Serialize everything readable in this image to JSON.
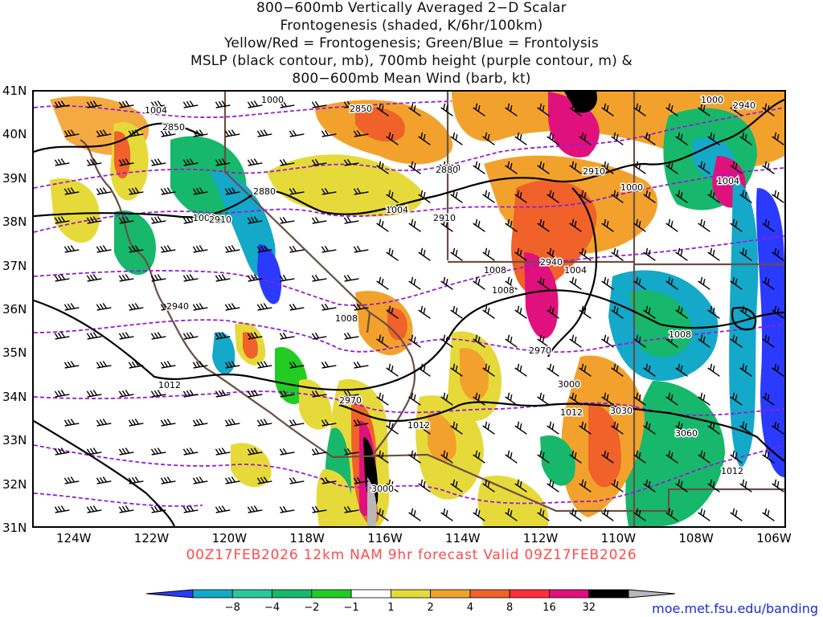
{
  "title": {
    "lines": [
      "800−600mb Vertically Averaged 2−D Scalar",
      "Frontogenesis (shaded, K/6hr/100km)",
      "Yellow/Red = Frontogenesis;  Green/Blue = Frontolysis",
      "MSLP (black contour, mb), 700mb height (purple contour, m) &",
      "800−600mb Mean Wind (barb, kt)"
    ]
  },
  "map": {
    "lat_labels": [
      "41N",
      "40N",
      "39N",
      "38N",
      "37N",
      "36N",
      "35N",
      "34N",
      "33N",
      "32N",
      "31N"
    ],
    "lon_labels": [
      "124W",
      "122W",
      "120W",
      "118W",
      "116W",
      "114W",
      "112W",
      "110W",
      "108W",
      "106W"
    ],
    "mslp_labels": [
      "1000",
      "1004",
      "1000",
      "1000",
      "1004",
      "1008",
      "1004",
      "1000",
      "1008",
      "1004",
      "1008",
      "1008",
      "1012",
      "1012",
      "1012",
      "1008",
      "1012"
    ],
    "height_labels": [
      "2850",
      "2850",
      "2880",
      "2910",
      "2880",
      "2910",
      "2910",
      "2940",
      "2940",
      "2940",
      "2970",
      "2970",
      "3000",
      "3030",
      "3060",
      "3000"
    ],
    "colors": {
      "frame": "#000000",
      "mslp": "#000000",
      "height": "#9a1ad6",
      "border": "#6b4f43",
      "barb": "#000000"
    }
  },
  "valid_text": "00Z17FEB2026 12km NAM 9hr forecast Valid 09Z17FEB2026",
  "colorbar": {
    "ticks": [
      "−8",
      "−4",
      "−2",
      "−1",
      "1",
      "2",
      "4",
      "8",
      "16",
      "32"
    ],
    "colors": [
      "#2a3bff",
      "#14a8c9",
      "#2ac79b",
      "#17b86b",
      "#22cc22",
      "#ffffff",
      "#e6d93a",
      "#f2a22c",
      "#f0622a",
      "#ff2f3c",
      "#e0117d",
      "#000000",
      "#b8b8b8"
    ]
  },
  "credit": "moe.met.fsu.edu/banding"
}
